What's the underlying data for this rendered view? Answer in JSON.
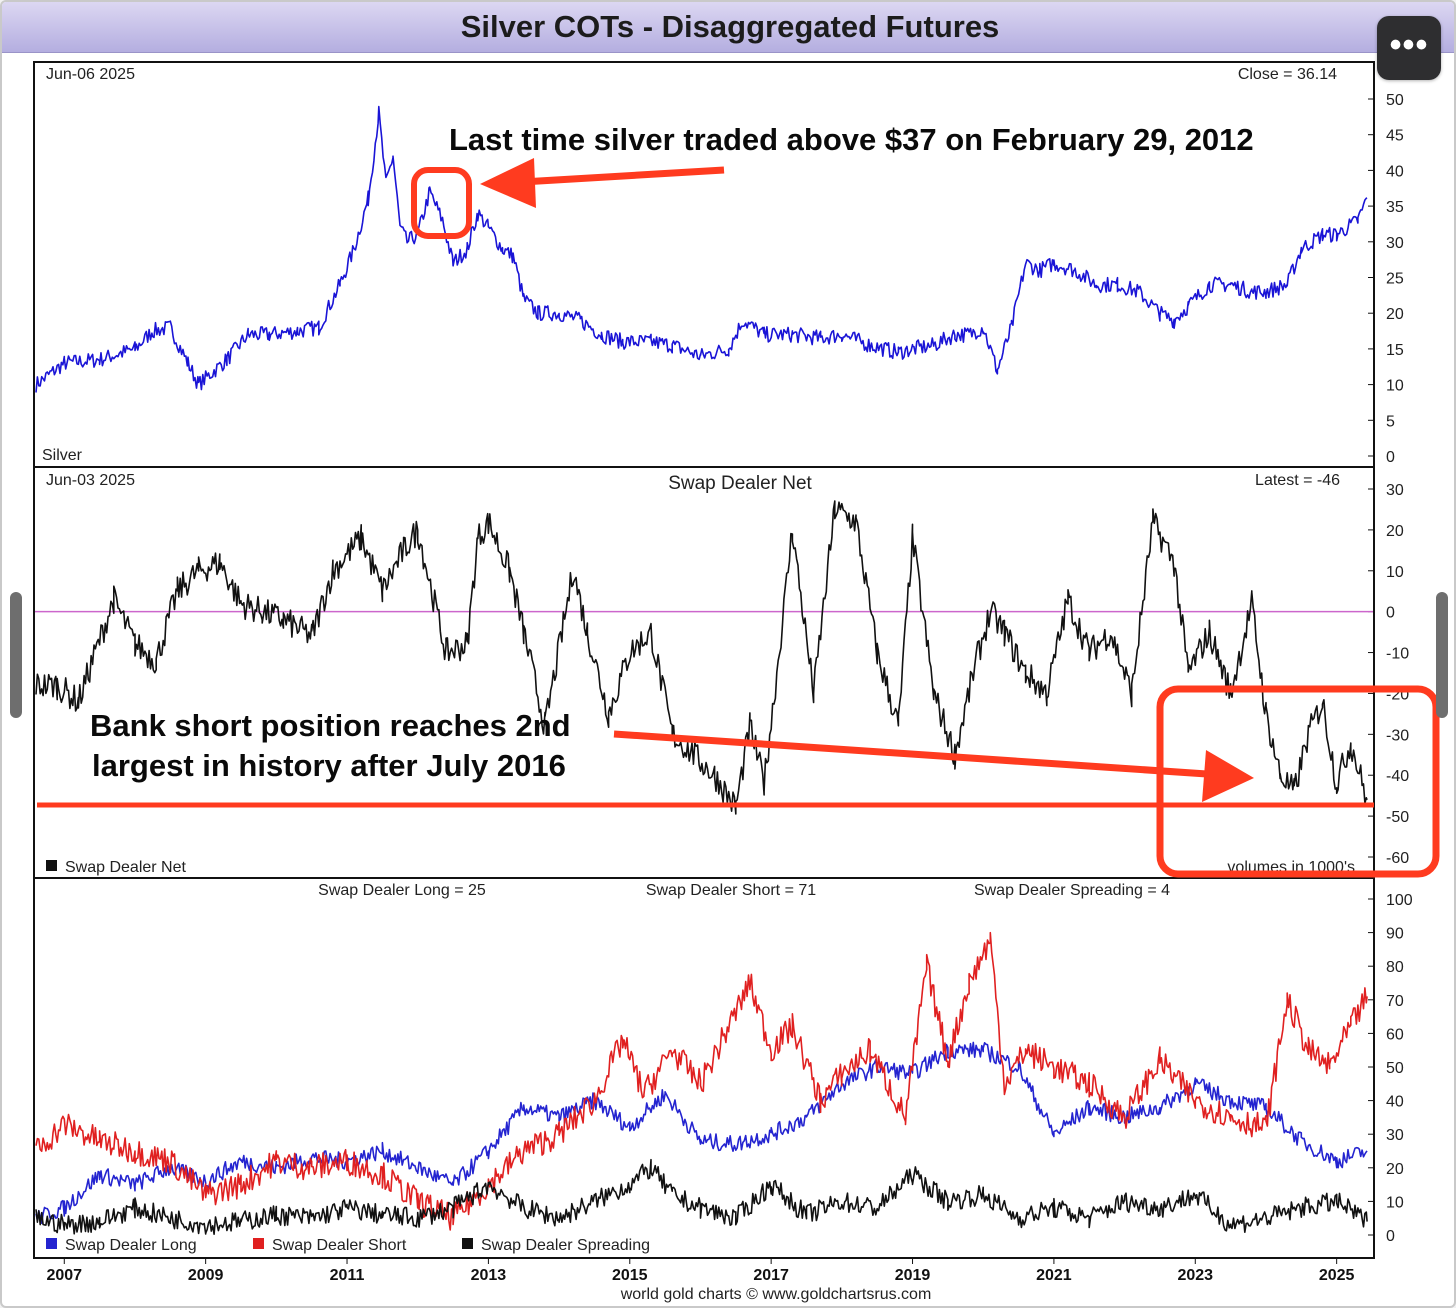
{
  "window": {
    "title": "Silver COTs - Disaggregated Futures",
    "menu_icon": "ellipsis-icon",
    "footer": "world gold charts © www.goldchartsrus.com"
  },
  "annotations": {
    "top": "Last time silver traded above $37 on February 29, 2012",
    "middle_line1": "Bank short position reaches 2nd",
    "middle_line2": "largest in history after July 2016"
  },
  "colors": {
    "price": "#1a14d6",
    "net": "#111111",
    "long": "#2424d0",
    "short": "#e02020",
    "spreading": "#111111",
    "zero_line": "#cc66cc",
    "annotation": "#ff3b1f"
  },
  "chart_data": [
    {
      "type": "line",
      "date": "Jun-06  2025",
      "readout": "Close = 36.14",
      "series_label": "Silver",
      "ylim": [
        0,
        50
      ],
      "yticks": [
        "50",
        "45",
        "40",
        "35",
        "30",
        "25",
        "20",
        "15",
        "10",
        "5",
        "0"
      ],
      "x_axis": [
        "2007",
        "2009",
        "2011",
        "2013",
        "2015",
        "2017",
        "2019",
        "2021",
        "2023",
        "2025"
      ],
      "series": [
        {
          "name": "Silver",
          "x": [
            2006.6,
            2007.0,
            2007.5,
            2008.0,
            2008.25,
            2008.5,
            2008.75,
            2008.9,
            2009.3,
            2009.6,
            2009.9,
            2010.3,
            2010.6,
            2010.9,
            2011.1,
            2011.3,
            2011.45,
            2011.55,
            2011.65,
            2011.75,
            2011.85,
            2012.0,
            2012.17,
            2012.35,
            2012.5,
            2012.7,
            2012.85,
            2013.0,
            2013.2,
            2013.35,
            2013.5,
            2013.7,
            2014.0,
            2014.3,
            2014.6,
            2014.9,
            2015.3,
            2015.6,
            2016.0,
            2016.4,
            2016.6,
            2016.9,
            2017.3,
            2017.7,
            2018.0,
            2018.4,
            2018.8,
            2019.0,
            2019.3,
            2019.6,
            2019.8,
            2020.0,
            2020.2,
            2020.4,
            2020.6,
            2020.8,
            2021.0,
            2021.3,
            2021.6,
            2021.9,
            2022.2,
            2022.5,
            2022.7,
            2022.9,
            2023.2,
            2023.5,
            2023.8,
            2024.0,
            2024.3,
            2024.5,
            2024.8,
            2025.0,
            2025.3,
            2025.43
          ],
          "values": [
            10,
            13,
            13.5,
            15,
            17.5,
            18,
            13,
            10,
            13.5,
            17,
            17,
            17.5,
            18,
            24,
            29,
            36,
            48,
            38,
            42,
            32,
            30,
            31,
            37,
            33,
            27,
            29,
            34,
            32,
            29,
            28,
            22,
            20,
            20,
            19,
            17,
            16,
            16,
            15.5,
            14,
            15,
            19,
            17,
            17,
            16.5,
            17,
            15.5,
            14.5,
            15,
            15.5,
            17,
            17,
            18,
            12,
            18,
            27,
            26,
            27,
            26,
            24,
            24,
            23,
            20,
            19,
            21,
            24,
            24,
            23,
            23,
            24,
            29,
            31,
            31,
            33,
            36.14
          ]
        }
      ]
    },
    {
      "type": "line",
      "title": "Swap Dealer Net",
      "date": "Jun-03  2025",
      "readout": "Latest = -46",
      "units_note": "volumes in 1000's",
      "ylim": [
        -60,
        30
      ],
      "yticks": [
        "30",
        "20",
        "10",
        "0",
        "-10",
        "-20",
        "-30",
        "-40",
        "-50",
        "-60"
      ],
      "legend": [
        "Swap Dealer Net"
      ],
      "series": [
        {
          "name": "Swap Dealer Net",
          "x": [
            2006.6,
            2006.9,
            2007.2,
            2007.4,
            2007.7,
            2008.0,
            2008.3,
            2008.6,
            2008.9,
            2009.2,
            2009.5,
            2009.8,
            2010.1,
            2010.5,
            2010.8,
            2011.2,
            2011.5,
            2011.8,
            2012.0,
            2012.4,
            2012.7,
            2012.85,
            2013.0,
            2013.3,
            2013.5,
            2013.8,
            2014.2,
            2014.4,
            2014.7,
            2015.0,
            2015.3,
            2015.6,
            2015.9,
            2016.2,
            2016.5,
            2016.7,
            2016.9,
            2017.1,
            2017.3,
            2017.6,
            2017.9,
            2018.2,
            2018.5,
            2018.8,
            2019.0,
            2019.3,
            2019.6,
            2019.9,
            2020.1,
            2020.3,
            2020.6,
            2020.9,
            2021.2,
            2021.5,
            2021.8,
            2022.1,
            2022.4,
            2022.7,
            2022.9,
            2023.2,
            2023.5,
            2023.8,
            2024.0,
            2024.2,
            2024.4,
            2024.6,
            2024.8,
            2025.0,
            2025.2,
            2025.43
          ],
          "values": [
            -18,
            -18,
            -22,
            -12,
            3,
            -8,
            -12,
            5,
            10,
            12,
            2,
            0,
            -2,
            -6,
            10,
            18,
            5,
            15,
            20,
            -10,
            -8,
            18,
            22,
            10,
            -5,
            -28,
            10,
            -5,
            -25,
            -10,
            -5,
            -30,
            -35,
            -40,
            -48,
            -28,
            -42,
            -12,
            20,
            -20,
            25,
            22,
            -10,
            -28,
            18,
            -20,
            -35,
            -12,
            0,
            -5,
            -15,
            -20,
            3,
            -10,
            -5,
            -20,
            22,
            12,
            -15,
            -5,
            -20,
            2,
            -25,
            -40,
            -44,
            -30,
            -22,
            -42,
            -32,
            -46
          ]
        }
      ],
      "reference_lines": [
        0,
        -47
      ]
    },
    {
      "type": "line",
      "ylim": [
        0,
        100
      ],
      "yticks": [
        "100",
        "90",
        "80",
        "70",
        "60",
        "50",
        "40",
        "30",
        "20",
        "10",
        "0"
      ],
      "headers": [
        "Swap Dealer Long = 25",
        "Swap Dealer Short = 71",
        "Swap Dealer Spreading = 4"
      ],
      "x_axis": [
        "2007",
        "2009",
        "2011",
        "2013",
        "2015",
        "2017",
        "2019",
        "2021",
        "2023",
        "2025"
      ],
      "legend": [
        "Swap Dealer Long",
        "Swap Dealer Short",
        "Swap Dealer Spreading"
      ],
      "series": [
        {
          "name": "Swap Dealer Long",
          "x": [
            2006.6,
            2007.0,
            2007.5,
            2008.0,
            2008.5,
            2009.0,
            2009.5,
            2010.0,
            2010.5,
            2011.0,
            2011.5,
            2012.0,
            2012.5,
            2013.0,
            2013.5,
            2014.0,
            2014.5,
            2015.0,
            2015.5,
            2016.0,
            2016.5,
            2017.0,
            2017.5,
            2018.0,
            2018.5,
            2019.0,
            2019.5,
            2020.0,
            2020.5,
            2021.0,
            2021.5,
            2022.0,
            2022.5,
            2023.0,
            2023.5,
            2024.0,
            2024.5,
            2025.0,
            2025.43
          ],
          "values": [
            5,
            8,
            18,
            15,
            20,
            16,
            22,
            20,
            23,
            22,
            25,
            20,
            15,
            25,
            38,
            35,
            40,
            32,
            42,
            28,
            27,
            30,
            35,
            45,
            50,
            48,
            55,
            55,
            50,
            30,
            38,
            35,
            38,
            45,
            40,
            38,
            28,
            22,
            25
          ]
        },
        {
          "name": "Swap Dealer Short",
          "x": [
            2006.6,
            2007.0,
            2007.5,
            2008.0,
            2008.5,
            2009.0,
            2009.5,
            2010.0,
            2010.5,
            2011.0,
            2011.5,
            2012.0,
            2012.5,
            2013.0,
            2013.5,
            2014.0,
            2014.5,
            2014.9,
            2015.2,
            2015.6,
            2016.0,
            2016.4,
            2016.7,
            2017.0,
            2017.3,
            2017.7,
            2018.0,
            2018.4,
            2018.9,
            2019.2,
            2019.5,
            2019.8,
            2020.1,
            2020.3,
            2020.6,
            2021.0,
            2021.5,
            2022.0,
            2022.5,
            2023.0,
            2023.5,
            2024.0,
            2024.3,
            2024.6,
            2024.9,
            2025.2,
            2025.43
          ],
          "values": [
            25,
            33,
            28,
            25,
            22,
            12,
            15,
            22,
            20,
            22,
            18,
            10,
            5,
            15,
            25,
            30,
            40,
            58,
            42,
            55,
            45,
            62,
            75,
            55,
            62,
            40,
            48,
            55,
            35,
            80,
            52,
            75,
            88,
            45,
            55,
            50,
            45,
            35,
            52,
            40,
            35,
            32,
            70,
            55,
            50,
            62,
            71
          ]
        },
        {
          "name": "Swap Dealer Spreading",
          "x": [
            2006.6,
            2007.0,
            2007.5,
            2008.0,
            2008.5,
            2009.0,
            2009.5,
            2010.0,
            2010.5,
            2011.0,
            2011.5,
            2012.0,
            2012.5,
            2013.0,
            2013.5,
            2014.0,
            2014.5,
            2015.0,
            2015.3,
            2015.6,
            2016.0,
            2016.5,
            2017.0,
            2017.5,
            2018.0,
            2018.5,
            2019.0,
            2019.5,
            2020.0,
            2020.5,
            2021.0,
            2021.5,
            2022.0,
            2022.5,
            2023.0,
            2023.5,
            2024.0,
            2024.5,
            2025.0,
            2025.43
          ],
          "values": [
            5,
            3,
            4,
            8,
            5,
            3,
            4,
            6,
            5,
            8,
            6,
            5,
            8,
            15,
            8,
            5,
            10,
            15,
            20,
            12,
            8,
            5,
            15,
            6,
            10,
            8,
            18,
            10,
            12,
            5,
            8,
            5,
            10,
            8,
            12,
            3,
            5,
            8,
            10,
            4
          ]
        }
      ]
    }
  ]
}
